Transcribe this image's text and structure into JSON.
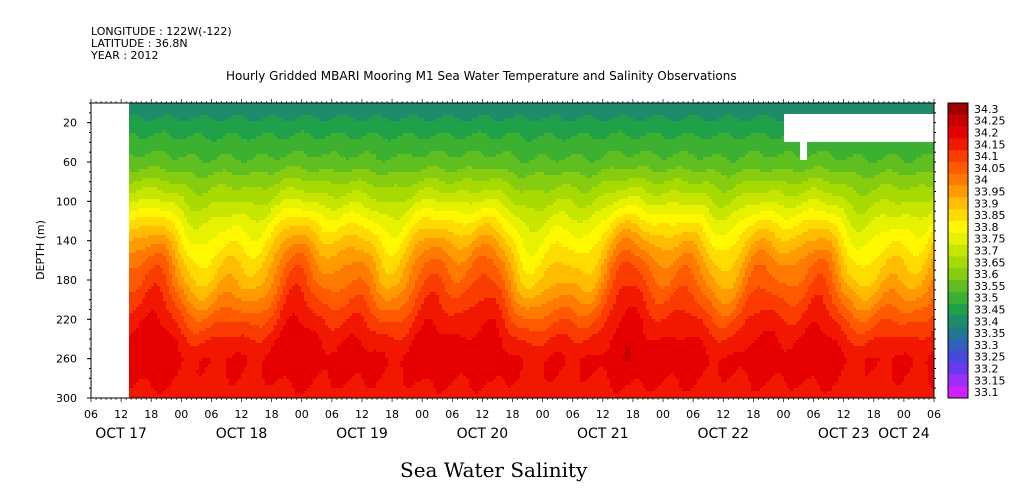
{
  "header": {
    "longitude": "LONGITUDE : 122W(-122)",
    "latitude": "LATITUDE : 36.8N",
    "year": "YEAR : 2012"
  },
  "chart_data": {
    "type": "heatmap",
    "title": "Hourly Gridded MBARI Mooring M1 Sea Water Temperature and Salinity Observations",
    "subtitle": "Sea Water Salinity",
    "ylabel": "DEPTH (m)",
    "xlabel": "",
    "ylim": [
      300,
      0
    ],
    "y_reversed": true,
    "y_ticks": [
      20,
      60,
      100,
      140,
      180,
      220,
      260,
      300
    ],
    "x_range_hours": [
      0,
      168
    ],
    "x_hour_labels": [
      "06",
      "12",
      "18",
      "00",
      "06",
      "12",
      "18",
      "00",
      "06",
      "12",
      "18",
      "00",
      "06",
      "12",
      "18",
      "00",
      "06",
      "12",
      "18",
      "00",
      "06",
      "12",
      "18",
      "00",
      "06",
      "12",
      "18",
      "00",
      "06"
    ],
    "date_labels": [
      "OCT 17",
      "OCT 18",
      "OCT 19",
      "OCT 20",
      "OCT 21",
      "OCT 22",
      "OCT 23",
      "OCT 24"
    ],
    "colorbar": {
      "levels": [
        "34.3",
        "34.25",
        "34.2",
        "34.15",
        "34.1",
        "34.05",
        "34",
        "33.95",
        "33.9",
        "33.85",
        "33.8",
        "33.75",
        "33.7",
        "33.65",
        "33.6",
        "33.55",
        "33.5",
        "33.45",
        "33.4",
        "33.35",
        "33.3",
        "33.25",
        "33.2",
        "33.15",
        "33.1"
      ],
      "colors": [
        "#a00000",
        "#c80000",
        "#e60000",
        "#f21800",
        "#fa3c00",
        "#ff5a00",
        "#ff7a00",
        "#ff9a00",
        "#ffbc00",
        "#ffdc00",
        "#fff800",
        "#e6f200",
        "#c6e600",
        "#a6da00",
        "#86cc10",
        "#5fbe20",
        "#3cb030",
        "#20a048",
        "#1e8c6a",
        "#207890",
        "#3060b8",
        "#4848dc",
        "#6a38f0",
        "#9a30f8",
        "#d020ff"
      ]
    },
    "depth_profile": [
      {
        "depth": 5,
        "value": 33.42
      },
      {
        "depth": 20,
        "value": 33.47
      },
      {
        "depth": 40,
        "value": 33.52
      },
      {
        "depth": 60,
        "value": 33.57
      },
      {
        "depth": 80,
        "value": 33.65
      },
      {
        "depth": 100,
        "value": 33.73
      },
      {
        "depth": 120,
        "value": 33.82
      },
      {
        "depth": 140,
        "value": 33.9
      },
      {
        "depth": 160,
        "value": 33.97
      },
      {
        "depth": 180,
        "value": 34.02
      },
      {
        "depth": 200,
        "value": 34.08
      },
      {
        "depth": 220,
        "value": 34.14
      },
      {
        "depth": 240,
        "value": 34.19
      },
      {
        "depth": 260,
        "value": 34.22
      },
      {
        "depth": 280,
        "value": 34.2
      },
      {
        "depth": 300,
        "value": 34.18
      }
    ]
  }
}
